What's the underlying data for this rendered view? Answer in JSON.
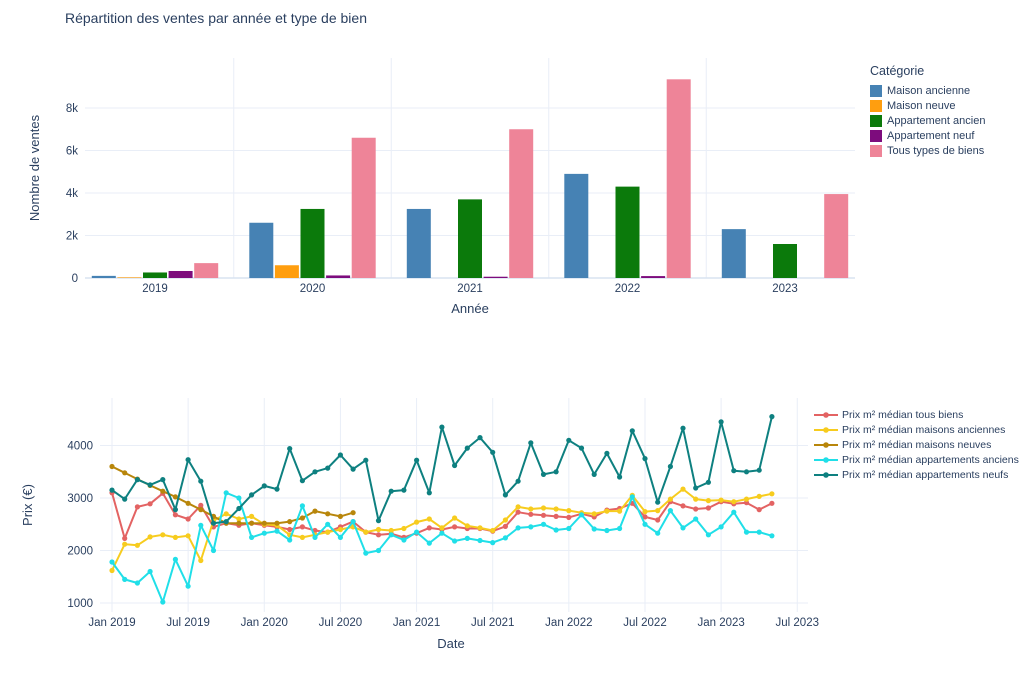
{
  "page": {
    "background": "#ffffff",
    "text_color": "#2a3f5f",
    "grid_color": "#e9eef7",
    "zeroline_color": "#d8e3f1"
  },
  "chart_data": [
    {
      "type": "bar",
      "title": "Répartition des ventes par année et type de bien",
      "xlabel": "Année",
      "ylabel": "Nombre de ventes",
      "legend_title": "Catégorie",
      "legend_position": "right",
      "grid": true,
      "categories": [
        "2019",
        "2020",
        "2021",
        "2022",
        "2023"
      ],
      "ylim": [
        0,
        9600
      ],
      "yticks": [
        {
          "value": 0,
          "label": "0"
        },
        {
          "value": 2000,
          "label": "2k"
        },
        {
          "value": 4000,
          "label": "4k"
        },
        {
          "value": 6000,
          "label": "6k"
        },
        {
          "value": 8000,
          "label": "8k"
        }
      ],
      "series": [
        {
          "name": "Maison ancienne",
          "color": "#4682b4",
          "values": [
            100,
            2600,
            3250,
            4900,
            2300
          ]
        },
        {
          "name": "Maison neuve",
          "color": "#ff9e0f",
          "values": [
            30,
            600,
            0,
            0,
            0
          ]
        },
        {
          "name": "Appartement ancien",
          "color": "#0b7a0b",
          "values": [
            260,
            3250,
            3700,
            4300,
            1600
          ]
        },
        {
          "name": "Appartement neuf",
          "color": "#7d0c7d",
          "values": [
            330,
            120,
            60,
            90,
            0
          ]
        },
        {
          "name": "Tous types de biens",
          "color": "#ee8498",
          "values": [
            700,
            6600,
            7000,
            9350,
            3950
          ]
        }
      ]
    },
    {
      "type": "line",
      "title": "",
      "xlabel": "Date",
      "ylabel": "Prix (€)",
      "legend_position": "right",
      "grid": true,
      "x_start_month": "Jan 2019",
      "months_count": 53,
      "xticks": [
        {
          "month_index": 0,
          "label": "Jan 2019"
        },
        {
          "month_index": 6,
          "label": "Jul 2019"
        },
        {
          "month_index": 12,
          "label": "Jan 2020"
        },
        {
          "month_index": 18,
          "label": "Jul 2020"
        },
        {
          "month_index": 24,
          "label": "Jan 2021"
        },
        {
          "month_index": 30,
          "label": "Jul 2021"
        },
        {
          "month_index": 36,
          "label": "Jan 2022"
        },
        {
          "month_index": 42,
          "label": "Jul 2022"
        },
        {
          "month_index": 48,
          "label": "Jan 2023"
        },
        {
          "month_index": 54,
          "label": "Jul 2023"
        }
      ],
      "yticks": [
        {
          "value": 1000,
          "label": "1000"
        },
        {
          "value": 2000,
          "label": "2000"
        },
        {
          "value": 3000,
          "label": "3000"
        },
        {
          "value": 4000,
          "label": "4000"
        }
      ],
      "ylim": [
        820,
        4900
      ],
      "series": [
        {
          "name": "Prix m² médian tous biens",
          "color": "#e36363",
          "values": [
            3100,
            2230,
            2830,
            2890,
            3090,
            2680,
            2600,
            2860,
            2450,
            2520,
            2480,
            2520,
            2480,
            2450,
            2400,
            2450,
            2380,
            2350,
            2450,
            2550,
            2350,
            2300,
            2320,
            2250,
            2330,
            2430,
            2400,
            2450,
            2420,
            2420,
            2370,
            2460,
            2730,
            2690,
            2670,
            2650,
            2630,
            2700,
            2640,
            2770,
            2800,
            2900,
            2640,
            2580,
            2930,
            2850,
            2790,
            2810,
            2930,
            2890,
            2910,
            2780,
            2900
          ]
        },
        {
          "name": "Prix m² médian maisons anciennes",
          "color": "#f7cc1e",
          "values": [
            1620,
            2120,
            2100,
            2260,
            2300,
            2250,
            2280,
            1810,
            2570,
            2700,
            2600,
            2650,
            2500,
            2480,
            2300,
            2250,
            2300,
            2350,
            2400,
            2450,
            2350,
            2400,
            2380,
            2420,
            2540,
            2600,
            2430,
            2620,
            2470,
            2430,
            2380,
            2580,
            2830,
            2790,
            2810,
            2790,
            2760,
            2720,
            2700,
            2750,
            2750,
            3050,
            2740,
            2760,
            2980,
            3170,
            2980,
            2950,
            2960,
            2930,
            2980,
            3030,
            3080
          ]
        },
        {
          "name": "Prix m² médian maisons neuves",
          "color": "#b8860b",
          "values": [
            3600,
            3480,
            3360,
            3240,
            3130,
            3020,
            2900,
            2780,
            2650,
            2520,
            2520,
            2520,
            2520,
            2520,
            2550,
            2620,
            2750,
            2700,
            2650,
            2720,
            null,
            null,
            null,
            null,
            null,
            null,
            null,
            null,
            null,
            null,
            null,
            null,
            null,
            null,
            null,
            null,
            null,
            null,
            null,
            null,
            null,
            null,
            null,
            null,
            null,
            null,
            null,
            null,
            null,
            null,
            null,
            null,
            null
          ]
        },
        {
          "name": "Prix m² médian appartements anciens",
          "color": "#20dfe8",
          "values": [
            1780,
            1450,
            1380,
            1600,
            1020,
            1830,
            1320,
            2480,
            2000,
            3100,
            3000,
            2250,
            2330,
            2370,
            2200,
            2850,
            2250,
            2500,
            2250,
            2550,
            1950,
            2000,
            2300,
            2200,
            2350,
            2140,
            2330,
            2180,
            2230,
            2190,
            2150,
            2240,
            2430,
            2450,
            2500,
            2390,
            2420,
            2680,
            2410,
            2380,
            2420,
            3020,
            2500,
            2330,
            2760,
            2430,
            2600,
            2300,
            2450,
            2730,
            2350,
            2350,
            2280
          ]
        },
        {
          "name": "Prix m² médian appartements neufs",
          "color": "#0e8080",
          "values": [
            3150,
            2980,
            3350,
            3250,
            3350,
            2780,
            3730,
            3320,
            2520,
            2550,
            2800,
            3060,
            3230,
            3170,
            3940,
            3330,
            3500,
            3570,
            3820,
            3550,
            3720,
            2570,
            3130,
            3150,
            3720,
            3100,
            4350,
            3620,
            3950,
            4150,
            3870,
            3060,
            3320,
            4050,
            3450,
            3500,
            4100,
            3950,
            3450,
            3850,
            3400,
            4280,
            3750,
            2920,
            3600,
            4330,
            3190,
            3300,
            4450,
            3520,
            3500,
            3530,
            4550
          ]
        }
      ]
    }
  ]
}
